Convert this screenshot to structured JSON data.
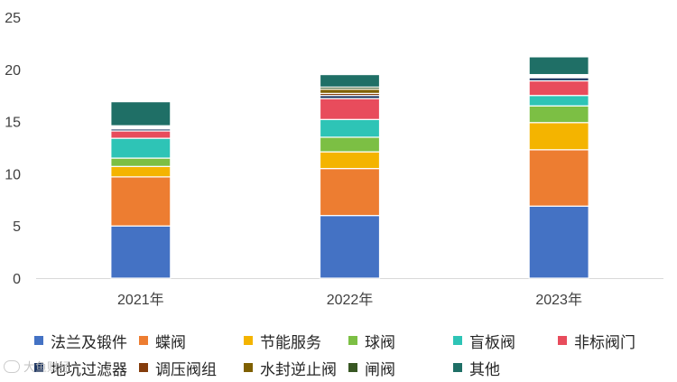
{
  "chart_data": {
    "type": "bar",
    "stacked": true,
    "categories": [
      "2021年",
      "2022年",
      "2023年"
    ],
    "ylim": [
      0,
      25
    ],
    "yticks": [
      "0",
      "5",
      "10",
      "15",
      "20",
      "25"
    ],
    "grid": false,
    "legend_position": "bottom",
    "series": [
      {
        "name": "法兰及锻件",
        "color": "#4472C4",
        "values": [
          5.0,
          6.0,
          6.9
        ]
      },
      {
        "name": "蝶阀",
        "color": "#ED7D31",
        "values": [
          4.7,
          4.5,
          5.4
        ]
      },
      {
        "name": "节能服务",
        "color": "#F4B400",
        "values": [
          1.0,
          1.6,
          2.6
        ]
      },
      {
        "name": "球阀",
        "color": "#7CBF44",
        "values": [
          0.8,
          1.4,
          1.6
        ]
      },
      {
        "name": "盲板阀",
        "color": "#2EC4B6",
        "values": [
          1.9,
          1.7,
          1.0
        ]
      },
      {
        "name": "非标阀门",
        "color": "#E84C5C",
        "values": [
          0.7,
          2.0,
          1.4
        ]
      },
      {
        "name": "地坑过滤器",
        "color": "#203864",
        "values": [
          0.2,
          0.3,
          0.3
        ]
      },
      {
        "name": "调压阀组",
        "color": "#843C0C",
        "values": [
          0.1,
          0.2,
          0.1
        ]
      },
      {
        "name": "水封逆止阀",
        "color": "#7F6000",
        "values": [
          0.1,
          0.4,
          0.1
        ]
      },
      {
        "name": "闸阀",
        "color": "#385723",
        "values": [
          0.1,
          0.2,
          0.1
        ]
      },
      {
        "name": "其他",
        "color": "#1F6F66",
        "values": [
          2.3,
          1.2,
          1.7
        ]
      }
    ]
  },
  "watermark": {
    "text": "大鱼财经"
  }
}
